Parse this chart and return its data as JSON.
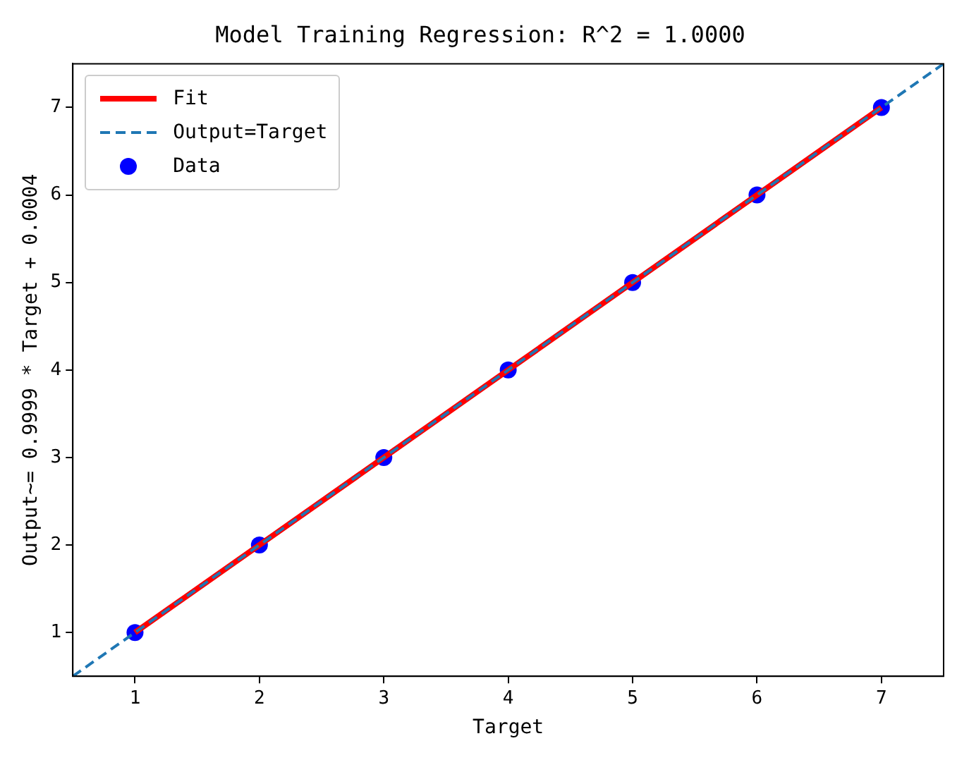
{
  "chart_data": {
    "type": "line",
    "title": "Model Training Regression: R^2 = 1.0000",
    "xlabel": "Target",
    "ylabel": "Output~= 0.9999 * Target + 0.0004",
    "xlim": [
      0.5,
      7.5
    ],
    "ylim": [
      0.5,
      7.5
    ],
    "xticks": [
      1,
      2,
      3,
      4,
      5,
      6,
      7
    ],
    "yticks": [
      1,
      2,
      3,
      4,
      5,
      6,
      7
    ],
    "grid": false,
    "legend": "top left",
    "series": [
      {
        "name": "Fit",
        "type": "line",
        "color": "#ff0000",
        "line_style": "solid",
        "marker": "none",
        "x": [
          1,
          7
        ],
        "values": [
          1,
          7
        ]
      },
      {
        "name": "Output=Target",
        "type": "line",
        "color": "#1f77b4",
        "line_style": "dashed",
        "marker": "none",
        "x": [
          0.5,
          7.5
        ],
        "values": [
          0.5,
          7.5
        ]
      },
      {
        "name": "Data",
        "type": "scatter",
        "color": "#0000ff",
        "marker": "circle",
        "x": [
          1,
          2,
          3,
          4,
          5,
          6,
          7
        ],
        "values": [
          1,
          2,
          3,
          4,
          5,
          6,
          7
        ]
      }
    ]
  }
}
